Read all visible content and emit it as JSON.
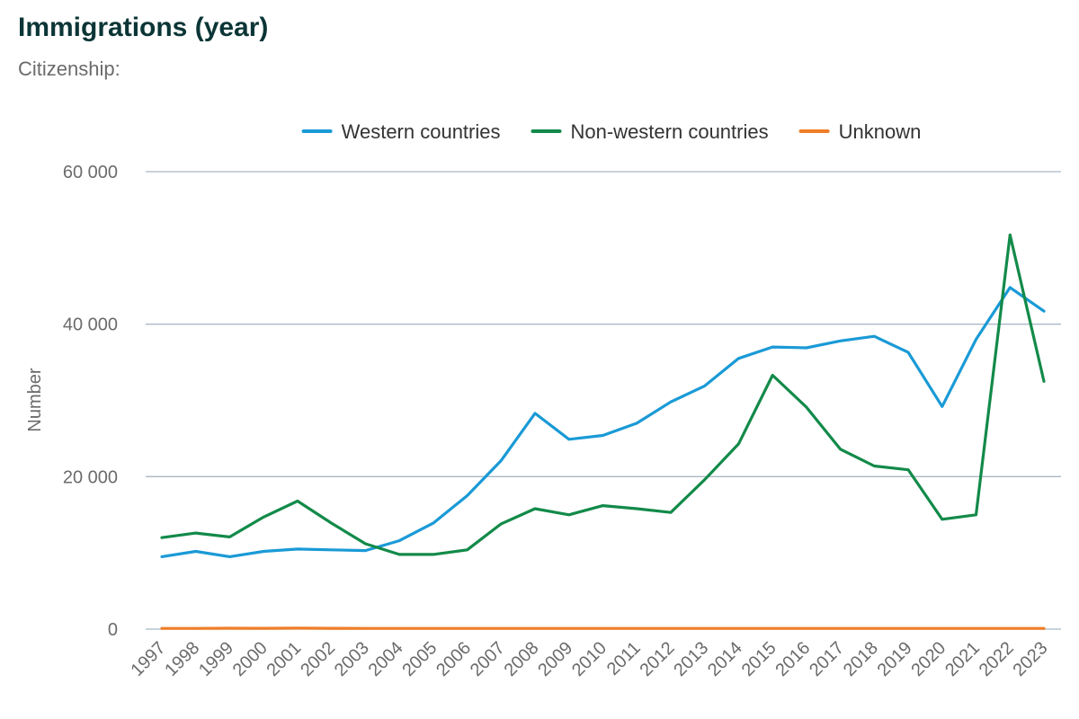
{
  "title": "Immigrations (year)",
  "subtitle": "Citizenship:",
  "chart_data": {
    "type": "line",
    "title": "Immigrations (year)",
    "subtitle": "Citizenship:",
    "xlabel": "",
    "ylabel": "Number",
    "x": [
      "1997",
      "1998",
      "1999",
      "2000",
      "2001",
      "2002",
      "2003",
      "2004",
      "2005",
      "2006",
      "2007",
      "2008",
      "2009",
      "2010",
      "2011",
      "2012",
      "2013",
      "2014",
      "2015",
      "2016",
      "2017",
      "2018",
      "2019",
      "2020",
      "2021",
      "2022",
      "2023"
    ],
    "ylim": [
      0,
      60000
    ],
    "yticks": [
      0,
      20000,
      40000,
      60000
    ],
    "ytick_labels": [
      "0",
      "20 000",
      "40 000",
      "60 000"
    ],
    "grid": true,
    "legend_position": "top",
    "series": [
      {
        "name": "Western countries",
        "color": "#1a9ad6",
        "values": [
          9500,
          10200,
          9500,
          10200,
          10500,
          10400,
          10300,
          11600,
          13900,
          17500,
          22100,
          28300,
          24900,
          25400,
          27000,
          29800,
          31900,
          35500,
          37000,
          36900,
          37800,
          38400,
          36300,
          29200,
          38000,
          44800,
          41700
        ]
      },
      {
        "name": "Non-western countries",
        "color": "#128a49",
        "values": [
          12000,
          12600,
          12100,
          14700,
          16800,
          13900,
          11200,
          9800,
          9800,
          10400,
          13800,
          15800,
          15000,
          16200,
          15800,
          15300,
          19600,
          24300,
          33300,
          29100,
          23600,
          21400,
          20900,
          14400,
          15000,
          51700,
          32500
        ]
      },
      {
        "name": "Unknown",
        "color": "#f07d27",
        "values": [
          100,
          100,
          120,
          110,
          130,
          110,
          100,
          90,
          90,
          90,
          90,
          90,
          90,
          90,
          90,
          90,
          90,
          90,
          90,
          90,
          90,
          90,
          90,
          90,
          90,
          90,
          90
        ]
      }
    ]
  }
}
